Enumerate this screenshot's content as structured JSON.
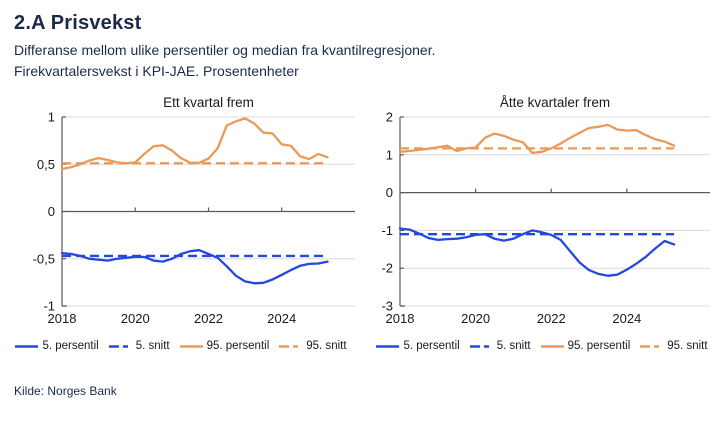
{
  "header": {
    "title": "2.A Prisvekst",
    "subtitle1": "Differanse mellom ulike persentiler og median fra kvantilregresjoner.",
    "subtitle2": "Firekvartalersvekst i KPI-JAE. Prosentenheter"
  },
  "footer": {
    "source": "Kilde: Norges Bank"
  },
  "colors": {
    "navy": "#1b2a4c",
    "blue": "#2348dd",
    "orange": "#ea9a57",
    "grid": "#dcdcdc",
    "axis": "#595959",
    "tick_text": "#1a1a1a"
  },
  "chart_data": [
    {
      "type": "line",
      "title": "Ett kvartal frem",
      "xlim": [
        2018,
        2026
      ],
      "ylim": [
        -1,
        1
      ],
      "x_start": 2018,
      "x_step": 0.25,
      "x_end": 2025.25,
      "grid": true,
      "legend_position": "bottom",
      "xticks": [
        {
          "v": 2018,
          "label": "2018"
        },
        {
          "v": 2020,
          "label": "2020"
        },
        {
          "v": 2022,
          "label": "2022"
        },
        {
          "v": 2024,
          "label": "2024"
        }
      ],
      "yticks": [
        {
          "v": 1,
          "label": "1"
        },
        {
          "v": 0.5,
          "label": "0,5"
        },
        {
          "v": 0,
          "label": "0"
        },
        {
          "v": -0.5,
          "label": "-0,5"
        },
        {
          "v": -1,
          "label": "-1"
        }
      ],
      "series": [
        {
          "name": "5. persentil",
          "color": "blue",
          "dash": false,
          "values": [
            -0.44,
            -0.45,
            -0.47,
            -0.5,
            -0.51,
            -0.52,
            -0.5,
            -0.49,
            -0.48,
            -0.48,
            -0.52,
            -0.53,
            -0.5,
            -0.45,
            -0.42,
            -0.41,
            -0.45,
            -0.49,
            -0.58,
            -0.68,
            -0.74,
            -0.76,
            -0.755,
            -0.72,
            -0.67,
            -0.62,
            -0.575,
            -0.555,
            -0.55,
            -0.53
          ]
        },
        {
          "name": "5. snitt",
          "color": "blue",
          "dash": true,
          "const": -0.47
        },
        {
          "name": "95. persentil",
          "color": "orange",
          "dash": false,
          "values": [
            0.45,
            0.47,
            0.5,
            0.54,
            0.565,
            0.545,
            0.52,
            0.51,
            0.52,
            0.61,
            0.69,
            0.7,
            0.645,
            0.565,
            0.515,
            0.515,
            0.56,
            0.67,
            0.91,
            0.955,
            0.985,
            0.93,
            0.835,
            0.825,
            0.71,
            0.695,
            0.585,
            0.555,
            0.61,
            0.575
          ]
        },
        {
          "name": "95. snitt",
          "color": "orange",
          "dash": true,
          "const": 0.51
        }
      ]
    },
    {
      "type": "line",
      "title": "Åtte kvartaler frem",
      "xlim": [
        2018,
        2026.2
      ],
      "ylim": [
        -3,
        2
      ],
      "x_start": 2018,
      "x_step": 0.25,
      "x_end": 2025.25,
      "grid": true,
      "legend_position": "bottom",
      "xticks": [
        {
          "v": 2018,
          "label": "2018"
        },
        {
          "v": 2020,
          "label": "2020"
        },
        {
          "v": 2022,
          "label": "2022"
        },
        {
          "v": 2024,
          "label": "2024"
        }
      ],
      "yticks": [
        {
          "v": 2,
          "label": "2"
        },
        {
          "v": 1,
          "label": "1"
        },
        {
          "v": 0,
          "label": "0"
        },
        {
          "v": -1,
          "label": "-1"
        },
        {
          "v": -2,
          "label": "-2"
        },
        {
          "v": -3,
          "label": "-3"
        }
      ],
      "series": [
        {
          "name": "5. persentil",
          "color": "blue",
          "dash": false,
          "values": [
            -0.95,
            -0.98,
            -1.08,
            -1.2,
            -1.25,
            -1.23,
            -1.22,
            -1.18,
            -1.12,
            -1.1,
            -1.22,
            -1.27,
            -1.22,
            -1.1,
            -1.0,
            -1.05,
            -1.12,
            -1.25,
            -1.55,
            -1.85,
            -2.05,
            -2.15,
            -2.2,
            -2.17,
            -2.04,
            -1.88,
            -1.7,
            -1.48,
            -1.28,
            -1.37
          ]
        },
        {
          "name": "5. snitt",
          "color": "blue",
          "dash": true,
          "const": -1.1
        },
        {
          "name": "95. persentil",
          "color": "orange",
          "dash": false,
          "values": [
            1.08,
            1.1,
            1.13,
            1.16,
            1.2,
            1.24,
            1.1,
            1.17,
            1.19,
            1.45,
            1.56,
            1.5,
            1.4,
            1.33,
            1.05,
            1.08,
            1.17,
            1.3,
            1.45,
            1.58,
            1.71,
            1.74,
            1.79,
            1.67,
            1.64,
            1.65,
            1.52,
            1.41,
            1.35,
            1.24
          ]
        },
        {
          "name": "95. snitt",
          "color": "orange",
          "dash": true,
          "const": 1.17
        }
      ]
    }
  ]
}
